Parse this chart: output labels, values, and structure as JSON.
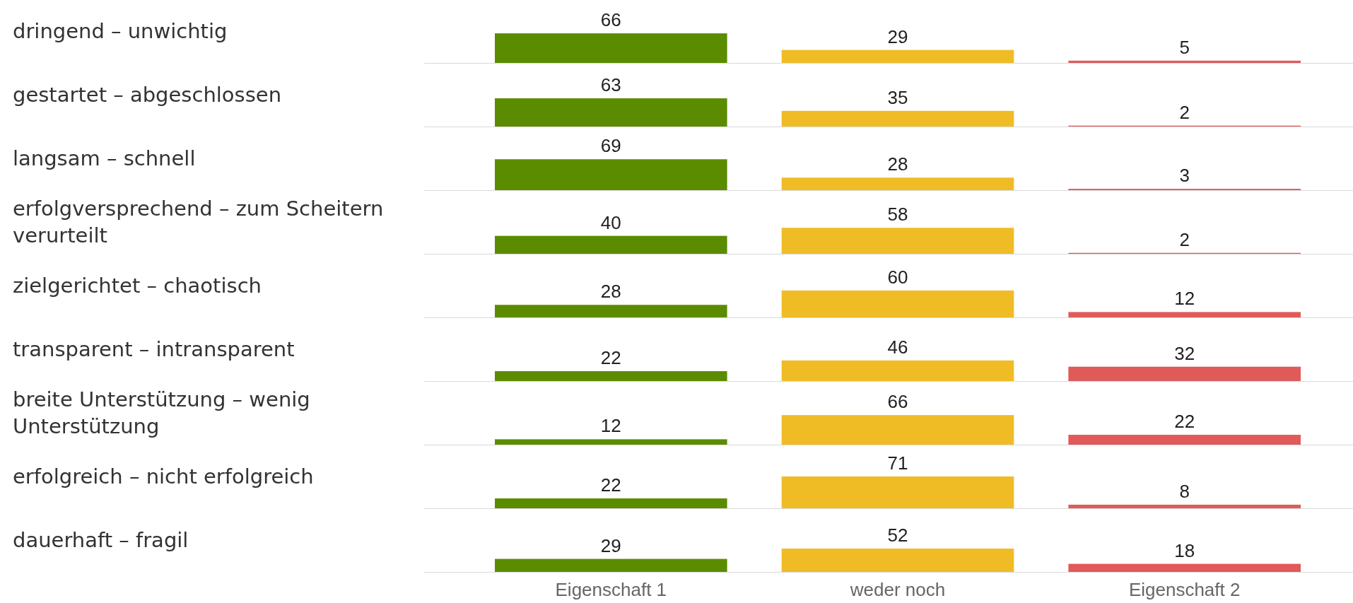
{
  "chart_data": [
    {
      "type": "bar",
      "ylabel": "dringend – unwichtig",
      "categories": [
        null,
        null,
        null
      ],
      "values": [
        66,
        29,
        5
      ],
      "colors": [
        "#5b8c00",
        "#f0bc26",
        "#e05a5a"
      ],
      "data_labels": true
    },
    {
      "type": "bar",
      "ylabel": "gestartet – abgeschlossen",
      "categories": [
        null,
        null,
        null
      ],
      "values": [
        63,
        35,
        2
      ],
      "colors": [
        "#5b8c00",
        "#f0bc26",
        "#e05a5a"
      ],
      "data_labels": true
    },
    {
      "type": "bar",
      "ylabel": "langsam – schnell",
      "categories": [
        null,
        null,
        null
      ],
      "values": [
        69,
        28,
        3
      ],
      "colors": [
        "#5b8c00",
        "#f0bc26",
        "#e05a5a"
      ],
      "data_labels": true
    },
    {
      "type": "bar",
      "ylabel": "erfolgversprechend – zum Scheitern verurteilt",
      "categories": [
        null,
        null,
        null
      ],
      "values": [
        40,
        58,
        2
      ],
      "colors": [
        "#5b8c00",
        "#f0bc26",
        "#e05a5a"
      ],
      "data_labels": true
    },
    {
      "type": "bar",
      "ylabel": "zielgerichtet – chaotisch",
      "categories": [
        null,
        null,
        null
      ],
      "values": [
        28,
        60,
        12
      ],
      "colors": [
        "#5b8c00",
        "#f0bc26",
        "#e05a5a"
      ],
      "data_labels": true
    },
    {
      "type": "bar",
      "ylabel": "transparent – intransparent",
      "categories": [
        null,
        null,
        null
      ],
      "values": [
        22,
        46,
        32
      ],
      "colors": [
        "#5b8c00",
        "#f0bc26",
        "#e05a5a"
      ],
      "data_labels": true
    },
    {
      "type": "bar",
      "ylabel": "breite Unterstützung – wenig Unterstützung",
      "categories": [
        null,
        null,
        null
      ],
      "values": [
        12,
        66,
        22
      ],
      "colors": [
        "#5b8c00",
        "#f0bc26",
        "#e05a5a"
      ],
      "data_labels": true
    },
    {
      "type": "bar",
      "ylabel": "erfolgreich – nicht erfolgreich",
      "categories": [
        null,
        null,
        null
      ],
      "values": [
        22,
        71,
        8
      ],
      "colors": [
        "#5b8c00",
        "#f0bc26",
        "#e05a5a"
      ],
      "data_labels": true
    },
    {
      "type": "bar",
      "ylabel": "dauerhaft – fragil",
      "categories": [
        "Eigenschaft 1",
        "weder noch",
        "Eigenschaft 2"
      ],
      "values": [
        29,
        52,
        18
      ],
      "colors": [
        "#5b8c00",
        "#f0bc26",
        "#e05a5a"
      ],
      "data_labels": true
    }
  ]
}
